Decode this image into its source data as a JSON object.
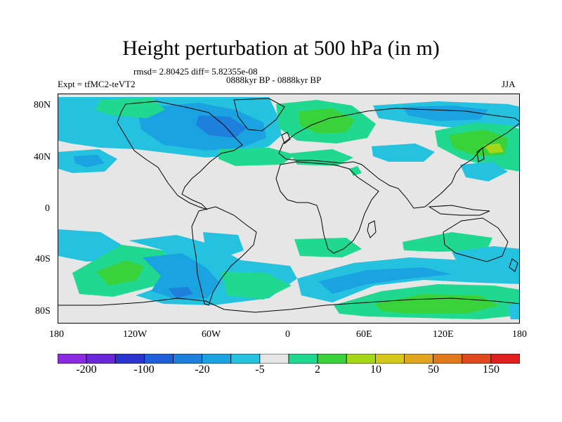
{
  "title": "Height perturbation at 500 hPa (in m)",
  "stats_line": "rmsd= 2.80425 diff= 5.82355e-08",
  "experiment": "Expt = tfMC2-teVT2",
  "period": "0888kyr BP - 0888kyr BP",
  "season": "JJA",
  "map": {
    "projection": "cylindrical equidistant",
    "lon_range": [
      -180,
      180
    ],
    "lat_range": [
      -90,
      90
    ],
    "lat_labels": [
      "80N",
      "40N",
      "0",
      "40S",
      "80S"
    ],
    "lon_labels": [
      "180",
      "120W",
      "60W",
      "0",
      "60E",
      "120E",
      "180"
    ],
    "background_color": "#e6e6e6",
    "coast_color": "#000000"
  },
  "colorbar": {
    "labels": [
      "-200",
      "-100",
      "-20",
      "-5",
      "2",
      "10",
      "50",
      "150"
    ],
    "colors": [
      "#8a2be2",
      "#6a28d8",
      "#2a35d0",
      "#1f5fd8",
      "#1e7fdc",
      "#1aa3e0",
      "#25c2e0",
      "#e6e6e6",
      "#20d890",
      "#3ad23a",
      "#a6d81a",
      "#d6c81a",
      "#e0a41e",
      "#e0781e",
      "#e0481e",
      "#e0201e"
    ]
  },
  "legend_colors": {
    "strong_negative": "#1e7fdc",
    "moderate_negative": "#1aa3e0",
    "weak_negative": "#25c2e0",
    "weak_positive": "#20d890",
    "moderate_positive": "#3ad23a",
    "strong_positive": "#a6d81a"
  }
}
